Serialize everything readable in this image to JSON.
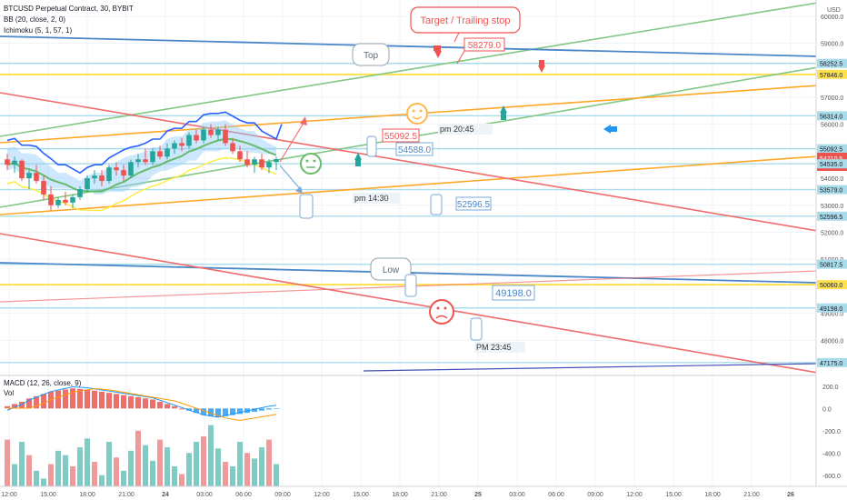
{
  "legend": {
    "symbol": "BTCUSD Perpetual Contract, 30, BYBIT",
    "bb": "BB (20, close, 2, 0)",
    "ichimoku": "Ichimoku (5, 1, 57, 1)"
  },
  "macd_legend": {
    "macd": "MACD (12, 26, close, 9)",
    "vol": "Vol"
  },
  "currency": "USD",
  "annotations": {
    "target": "Target / Trailing stop",
    "top": "Top",
    "low": "Low",
    "pm2045": "pm 20:45",
    "pm1430": "pm 14:30",
    "pm2345": "PM 23:45",
    "p58279": "58279.0",
    "p55092": "55092.5",
    "p54588": "54588.0",
    "p52596": "52596.5",
    "p49198": "49198.0"
  },
  "colors": {
    "up": "#26a69a",
    "down": "#ef5350",
    "green_line": "#81c784",
    "blue_line": "#4a86c8",
    "orange_line": "#ffa726",
    "red_line": "#ef6b6b",
    "yellow_level": "#ffe14d",
    "cyan_level": "#a8dcea"
  },
  "chart_data": {
    "type": "candlestick",
    "price_axis": {
      "ticks": [
        "60000.0",
        "59000.0",
        "57000.0",
        "56000.0",
        "54000.0",
        "53000.0",
        "52000.0",
        "51000.0",
        "49000.0",
        "48000.0"
      ],
      "ylim": [
        46800,
        60600
      ]
    },
    "time_axis": {
      "ticks": [
        "12:00",
        "15:00",
        "18:00",
        "21:00",
        "24",
        "03:00",
        "06:00",
        "09:00",
        "12:00",
        "15:00",
        "18:00",
        "21:00",
        "25",
        "03:00",
        "06:00",
        "09:00",
        "12:00",
        "15:00",
        "18:00",
        "21:00",
        "26"
      ]
    },
    "price_labels": [
      "58252.5",
      "57846.0",
      "56314.0",
      "55092.5",
      "54710.5",
      "54535.0",
      "53579.0",
      "52596.5",
      "50817.5",
      "50060.0",
      "49198.0",
      "47175.0"
    ],
    "current_price": {
      "price": "54710.5",
      "countdown": "06:37"
    },
    "levels": [
      {
        "price": 58252.5,
        "kind": "cyan"
      },
      {
        "price": 57846.0,
        "kind": "yellow"
      },
      {
        "price": 56314.0,
        "kind": "cyan"
      },
      {
        "price": 55092.5,
        "kind": "cyan"
      },
      {
        "price": 54535.0,
        "kind": "cyan"
      },
      {
        "price": 53579.0,
        "kind": "cyan"
      },
      {
        "price": 52596.5,
        "kind": "cyan"
      },
      {
        "price": 50817.5,
        "kind": "cyan"
      },
      {
        "price": 50060.0,
        "kind": "yellow"
      },
      {
        "price": 49198.0,
        "kind": "cyan"
      },
      {
        "price": 47175.0,
        "kind": "cyan"
      }
    ],
    "candles_ohlc": [
      [
        54700,
        54900,
        54300,
        54500
      ],
      [
        54500,
        54800,
        54200,
        54650
      ],
      [
        54650,
        54700,
        53900,
        54000
      ],
      [
        54000,
        54300,
        53600,
        54200
      ],
      [
        54200,
        54500,
        53800,
        53900
      ],
      [
        53900,
        54100,
        53200,
        53400
      ],
      [
        53400,
        53700,
        52800,
        53000
      ],
      [
        53000,
        53300,
        52900,
        53200
      ],
      [
        53200,
        53500,
        53000,
        53100
      ],
      [
        53100,
        53400,
        52900,
        53300
      ],
      [
        53300,
        53700,
        53200,
        53600
      ],
      [
        53600,
        54100,
        53500,
        54000
      ],
      [
        54000,
        54300,
        53800,
        54100
      ],
      [
        54100,
        54300,
        53700,
        53900
      ],
      [
        53900,
        54500,
        53800,
        54400
      ],
      [
        54400,
        54600,
        54100,
        54300
      ],
      [
        54300,
        54500,
        53900,
        54100
      ],
      [
        54100,
        54700,
        54000,
        54600
      ],
      [
        54600,
        54900,
        54400,
        54700
      ],
      [
        54700,
        55100,
        54500,
        54600
      ],
      [
        54600,
        55100,
        54500,
        55000
      ],
      [
        55000,
        55200,
        54700,
        54800
      ],
      [
        54800,
        55300,
        54700,
        55100
      ],
      [
        55100,
        55400,
        54900,
        55300
      ],
      [
        55300,
        55500,
        55000,
        55200
      ],
      [
        55200,
        55700,
        55100,
        55600
      ],
      [
        55600,
        55800,
        55300,
        55400
      ],
      [
        55400,
        55900,
        55300,
        55800
      ],
      [
        55800,
        56000,
        55500,
        55600
      ],
      [
        55600,
        55900,
        55400,
        55800
      ],
      [
        55800,
        56000,
        55200,
        55300
      ],
      [
        55300,
        55500,
        54900,
        55000
      ],
      [
        55000,
        55200,
        54600,
        54700
      ],
      [
        54700,
        55000,
        54400,
        54500
      ],
      [
        54500,
        54800,
        54200,
        54700
      ],
      [
        54700,
        54900,
        54300,
        54400
      ],
      [
        54400,
        54700,
        54200,
        54600
      ],
      [
        54600,
        54800,
        54300,
        54710
      ]
    ],
    "macd_axis": {
      "ticks": [
        "200.0",
        "0.0",
        "-200.0",
        "-400.0",
        "-600.0"
      ],
      "ylim": [
        -700,
        280
      ]
    }
  }
}
